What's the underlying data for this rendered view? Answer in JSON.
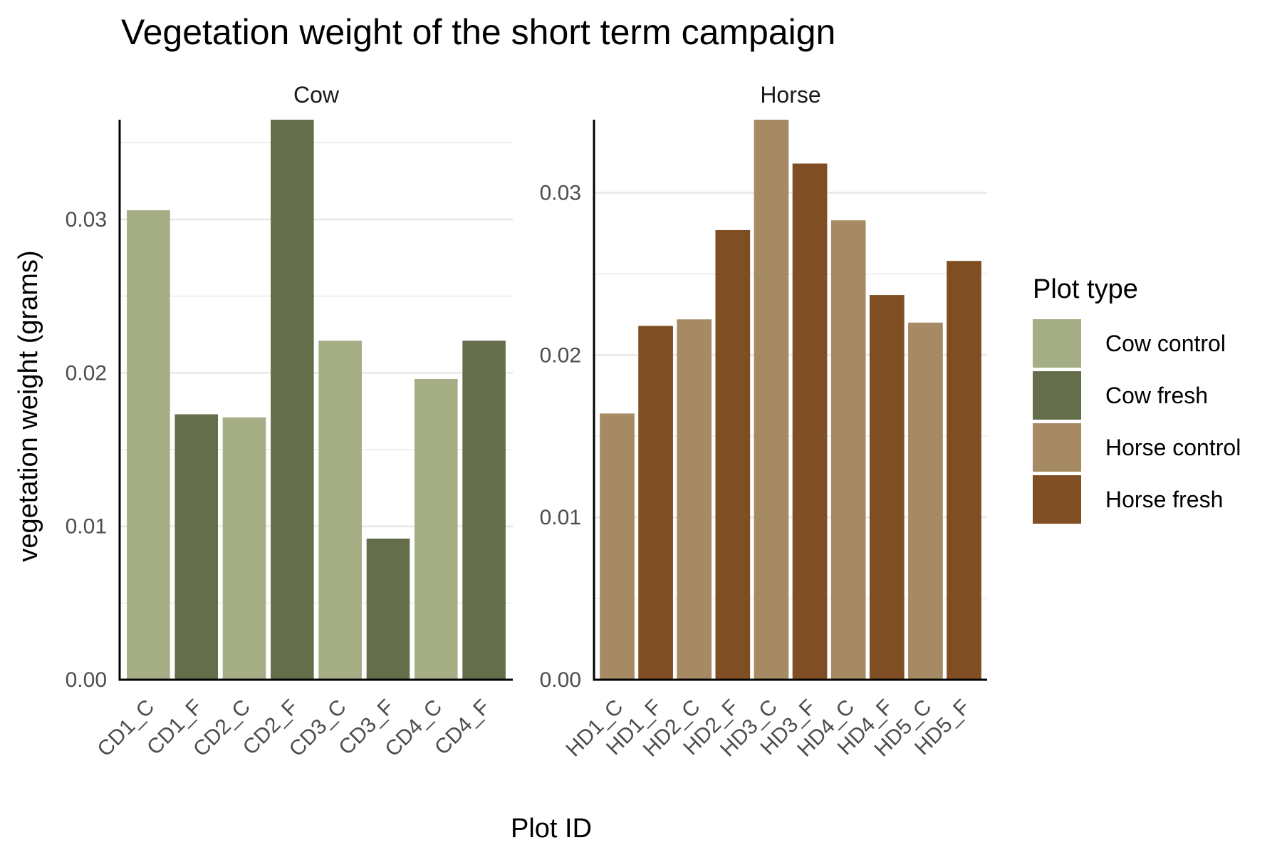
{
  "chart_data": {
    "type": "bar",
    "title": "Vegetation weight of the short term campaign",
    "xlabel": "Plot ID",
    "ylabel": "vegetation weight (grams)",
    "grid": true,
    "legend": {
      "title": "Plot type",
      "placement": "right",
      "entries": [
        {
          "label": "Cow control",
          "color": "#a5ad85"
        },
        {
          "label": "Cow fresh",
          "color": "#656e4a"
        },
        {
          "label": "Horse control",
          "color": "#a68a63"
        },
        {
          "label": "Horse fresh",
          "color": "#7f4f23"
        }
      ]
    },
    "facets": [
      {
        "label": "Cow",
        "ylim": [
          0,
          0.0365
        ],
        "yticks": [
          0,
          0.01,
          0.02,
          0.03
        ],
        "ytick_labels": [
          "0.00",
          "0.01",
          "0.02",
          "0.03"
        ],
        "categories": [
          "CD1_C",
          "CD1_F",
          "CD2_C",
          "CD2_F",
          "CD3_C",
          "CD3_F",
          "CD4_C",
          "CD4_F"
        ],
        "values": [
          0.0306,
          0.0173,
          0.0171,
          0.0365,
          0.0221,
          0.0092,
          0.0196,
          0.0221
        ],
        "types": [
          "Cow control",
          "Cow fresh",
          "Cow control",
          "Cow fresh",
          "Cow control",
          "Cow fresh",
          "Cow control",
          "Cow fresh"
        ]
      },
      {
        "label": "Horse",
        "ylim": [
          0,
          0.0345
        ],
        "yticks": [
          0,
          0.01,
          0.02,
          0.03
        ],
        "ytick_labels": [
          "0.00",
          "0.01",
          "0.02",
          "0.03"
        ],
        "categories": [
          "HD1_C",
          "HD1_F",
          "HD2_C",
          "HD2_F",
          "HD3_C",
          "HD3_F",
          "HD4_C",
          "HD4_F",
          "HD5_C",
          "HD5_F"
        ],
        "values": [
          0.0164,
          0.0218,
          0.0222,
          0.0277,
          0.0345,
          0.0318,
          0.0283,
          0.0237,
          0.022,
          0.0258
        ],
        "types": [
          "Horse control",
          "Horse fresh",
          "Horse control",
          "Horse fresh",
          "Horse control",
          "Horse fresh",
          "Horse control",
          "Horse fresh",
          "Horse control",
          "Horse fresh"
        ]
      }
    ]
  }
}
